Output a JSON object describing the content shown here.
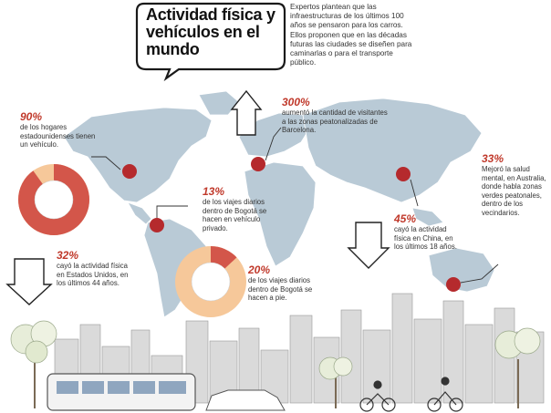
{
  "title": "Actividad física y vehículos en el mundo",
  "intro": "Expertos plantean que las infraestructuras de los últimos 100 años se pensaron para los carros. Ellos proponen que en las décadas futuras las ciudades se diseñen para caminarlas o para el transporte público.",
  "stats": [
    {
      "id": "us-cars",
      "value": "90%",
      "text": "de los hogares estadounidenses tienen un vehículo."
    },
    {
      "id": "us-activity",
      "value": "32%",
      "text": "cayó la actividad física en Estados Unidos, en los últimos 44 años."
    },
    {
      "id": "barcelona",
      "value": "300%",
      "text": "aumentó la cantidad de visitantes a las zonas peatonalizadas de Barcelona."
    },
    {
      "id": "bogota-car",
      "value": "13%",
      "text": "de los viajes diarios dentro de Bogotá se hacen en vehículo privado."
    },
    {
      "id": "bogota-walk",
      "value": "20%",
      "text": "de los viajes diarios dentro de Bogotá se hacen a pie."
    },
    {
      "id": "china",
      "value": "45%",
      "text": "cayó la actividad física en China, en los últimos 18 años."
    },
    {
      "id": "australia",
      "value": "33%",
      "text": "Mejoró la salud mental, en Australia, donde habla zonas verdes peatonales, dentro de los vecindarios."
    }
  ],
  "donuts": [
    {
      "id": "us",
      "share": 0.9
    },
    {
      "id": "bogota",
      "share": 0.13
    }
  ],
  "colors": {
    "accent": "#c0392b",
    "map": "#b9cad6",
    "donut_fill": "#f6c89a",
    "donut_slice": "#d3564a",
    "city": "#d8d8d8"
  }
}
